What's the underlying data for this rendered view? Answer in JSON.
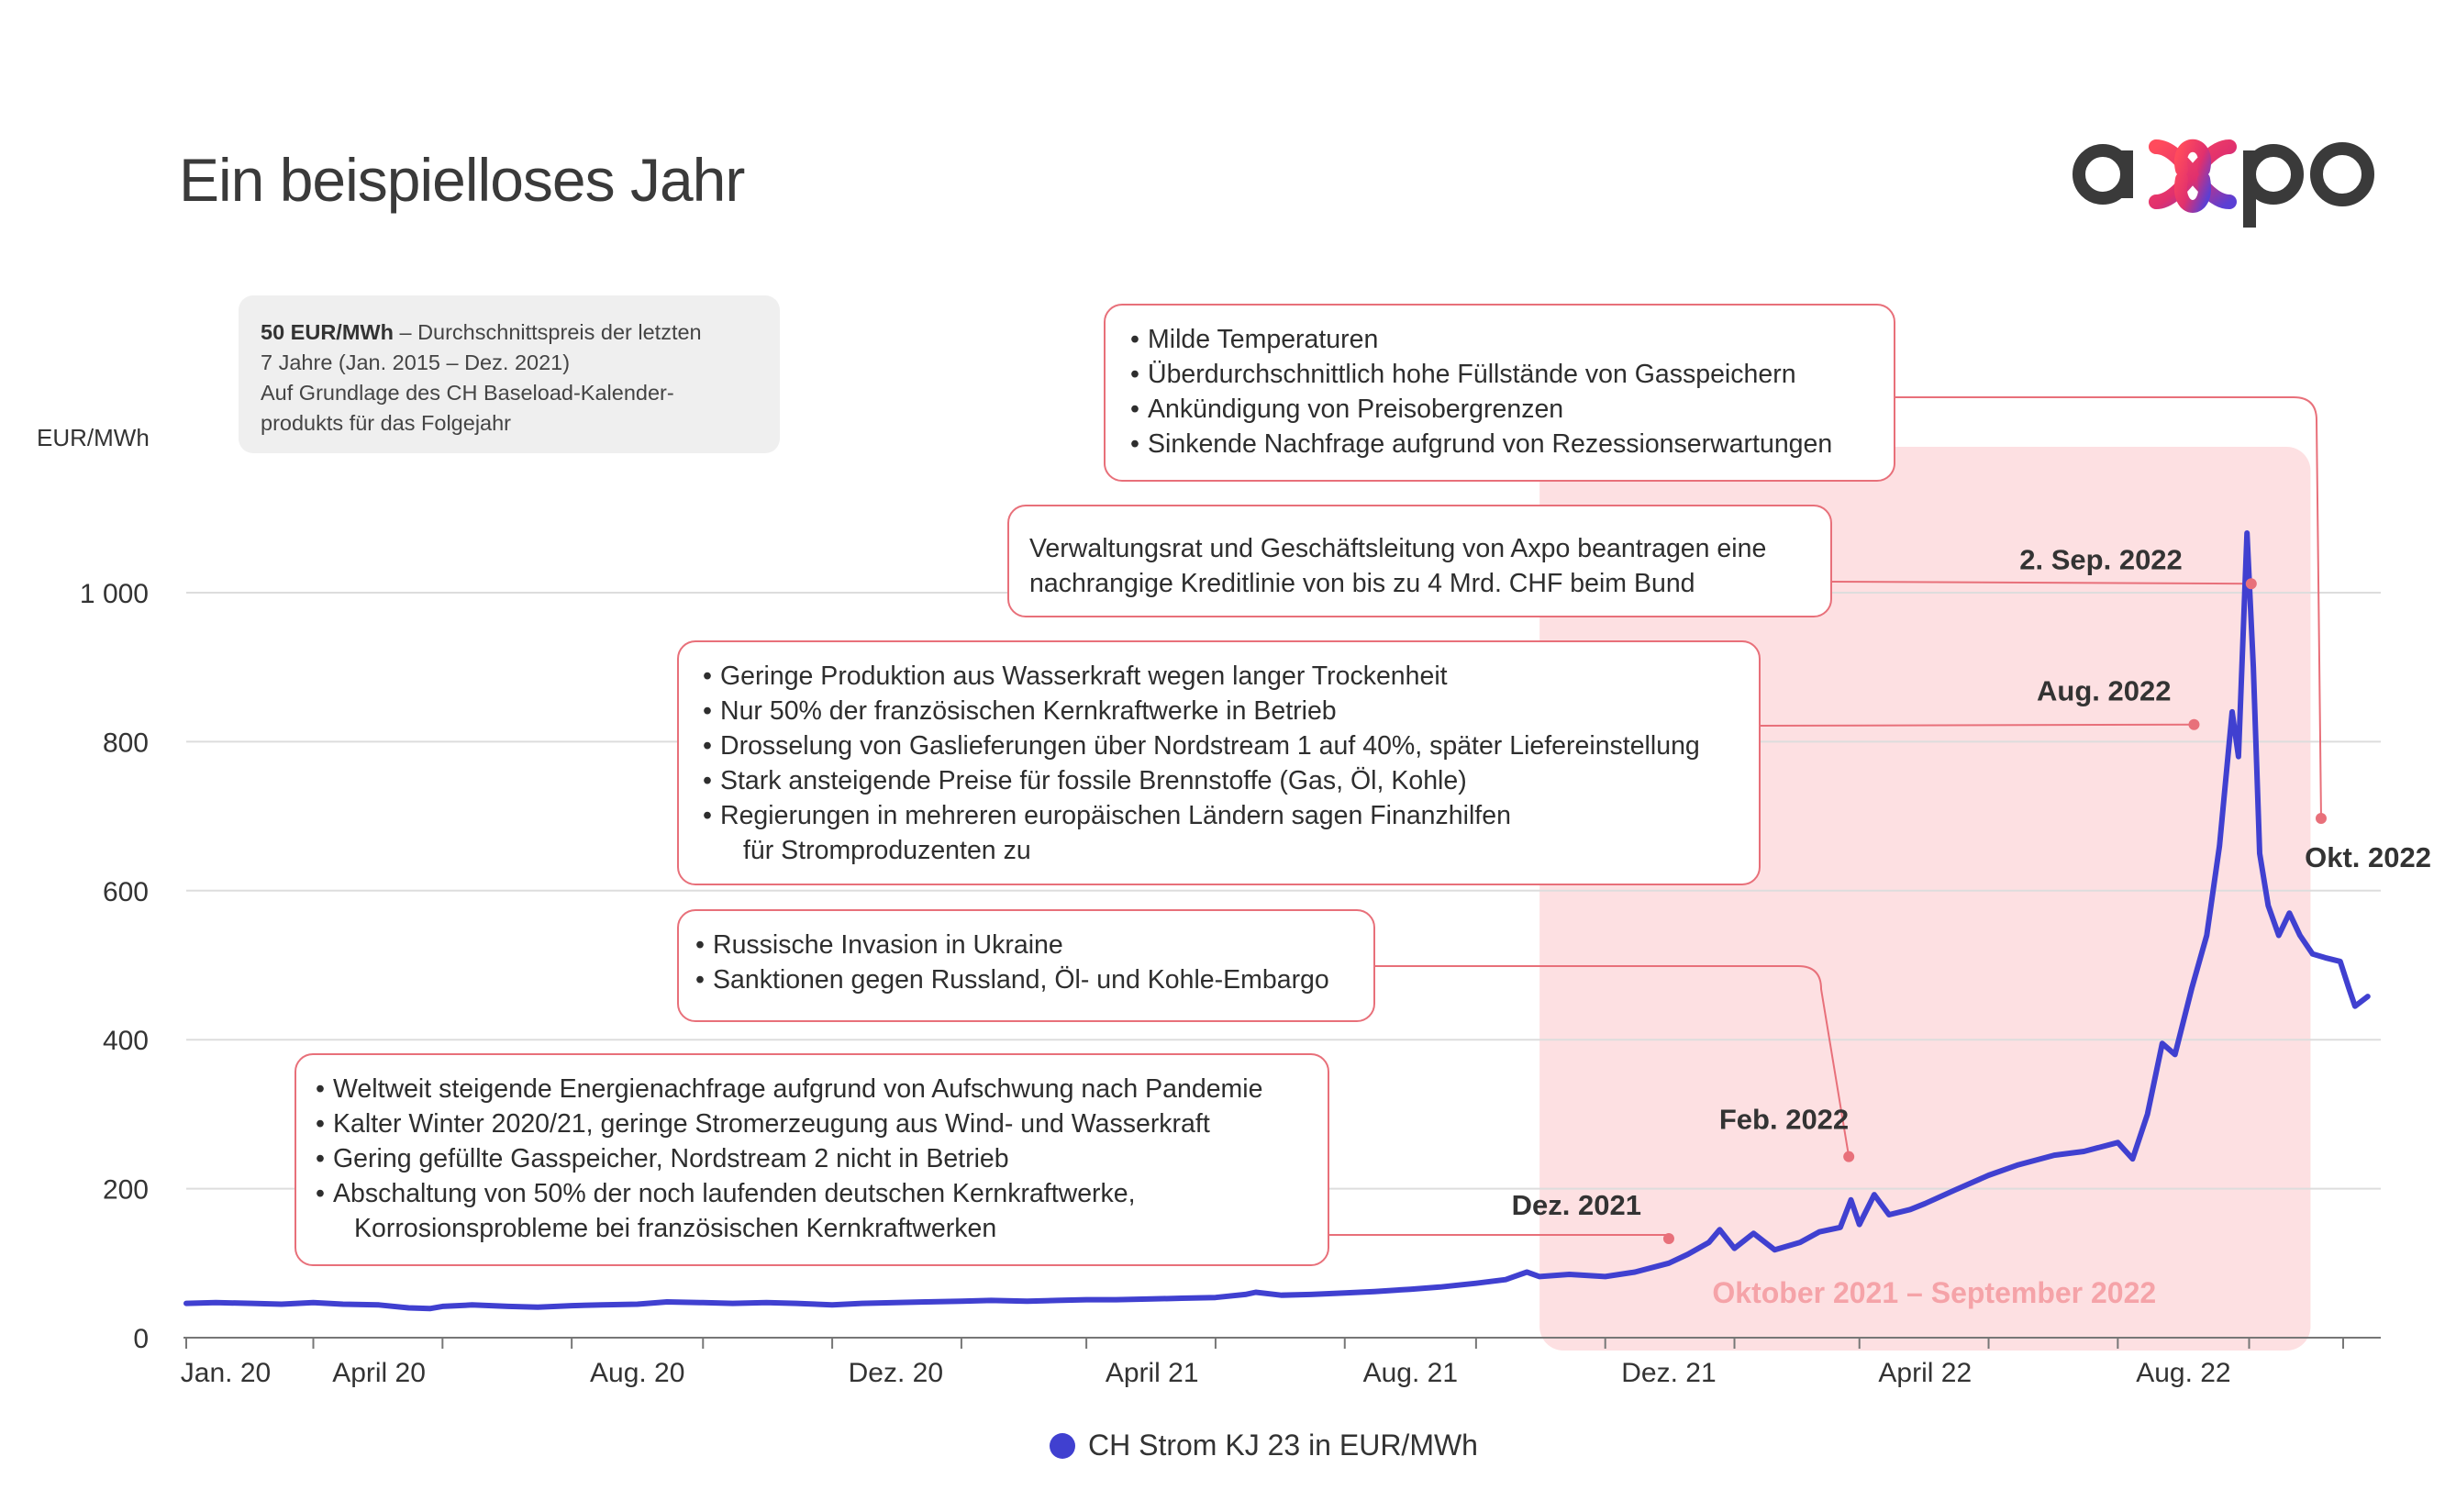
{
  "title": "Ein beispielloses Jahr",
  "logo": {
    "text": "axpo"
  },
  "info_box": {
    "bold": "50 EUR/MWh",
    "rest": " – Durchschnittspreis der letzten",
    "line2": "7 Jahre (Jan. 2015 – Dez. 2021)",
    "line3": "Auf Grundlage des CH Baseload-Kalender-",
    "line4": "produkts für das Folgejahr"
  },
  "callouts": {
    "c1": [
      "Weltweit steigende Energienachfrage aufgrund von Aufschwung nach Pandemie",
      "Kalter Winter 2020/21, geringe Stromerzeugung aus Wind- und Wasserkraft",
      "Gering gefüllte Gasspeicher, Nordstream 2 nicht in Betrieb",
      "Abschaltung von 50% der noch laufenden deutschen Kernkraftwerke,",
      "Korrosionsprobleme bei französischen Kernkraftwerken"
    ],
    "c2": [
      "Russische Invasion in Ukraine",
      "Sanktionen gegen Russland, Öl- und Kohle-Embargo"
    ],
    "c3": [
      "Geringe Produktion aus Wasserkraft wegen langer Trockenheit",
      "Nur 50% der französischen Kernkraftwerke in Betrieb",
      "Drosselung von Gaslieferungen über Nordstream 1 auf 40%, später Liefereinstellung",
      "Stark ansteigende Preise für fossile Brennstoffe (Gas, Öl, Kohle)",
      "Regierungen in mehreren europäischen Ländern sagen Finanzhilfen",
      "für Stromproduzenten zu"
    ],
    "c4": [
      "Verwaltungsrat und Geschäftsleitung von Axpo beantragen eine",
      "nachrangige Kreditlinie von bis zu 4 Mrd. CHF beim Bund"
    ],
    "c5": [
      "Milde Temperaturen",
      "Überdurchschnittlich hohe Füllstände von Gasspeichern",
      "Ankündigung von Preisobergrenzen",
      "Sinkende Nachfrage aufgrund von Rezessionserwartungen"
    ]
  },
  "legend": {
    "label": "CH Strom KJ 23 in EUR/MWh",
    "color": "#4040d0"
  },
  "colors": {
    "series": "#4040d0",
    "highlight": "#fde0e2",
    "callout_border": "#e8707a",
    "highlight_text": "#f5a3a8"
  },
  "chart_data": {
    "type": "line",
    "title": "Ein beispielloses Jahr",
    "ylabel": "EUR/MWh",
    "xlabel": "",
    "ylim": [
      0,
      1000
    ],
    "yticks": [
      0,
      200,
      400,
      600,
      800,
      1000
    ],
    "yticks_labels": [
      "0",
      "200",
      "400",
      "600",
      "800",
      "1 000"
    ],
    "xlim": [
      "2020-01-01",
      "2022-10-31"
    ],
    "xticks": [
      {
        "date": "2020-01-01",
        "label": "Jan. 20"
      },
      {
        "date": "2020-04-01",
        "label": "April 20"
      },
      {
        "date": "2020-08-01",
        "label": "Aug. 20"
      },
      {
        "date": "2020-12-01",
        "label": "Dez. 20"
      },
      {
        "date": "2021-04-01",
        "label": "April 21"
      },
      {
        "date": "2021-08-01",
        "label": "Aug. 21"
      },
      {
        "date": "2021-12-01",
        "label": "Dez. 21"
      },
      {
        "date": "2022-04-01",
        "label": "April 22"
      },
      {
        "date": "2022-08-01",
        "label": "Aug. 22"
      }
    ],
    "grid": true,
    "legend_position": "bottom",
    "highlight": {
      "from": "2021-10-01",
      "to": "2022-09-30",
      "label": "Oktober 2021 – September 2022"
    },
    "annotations": [
      {
        "date": "2021-12-01",
        "value": 133,
        "label": "Dez. 2021"
      },
      {
        "date": "2022-02-24",
        "value": 243,
        "label": "Feb. 2022"
      },
      {
        "date": "2022-08-06",
        "value": 823,
        "label": "Aug. 2022"
      },
      {
        "date": "2022-09-02",
        "value": 1012,
        "label": "2. Sep. 2022"
      },
      {
        "date": "2022-10-05",
        "value": 697,
        "label": "Okt. 2022"
      }
    ],
    "series": [
      {
        "name": "CH Strom KJ 23 in EUR/MWh",
        "points": [
          [
            "2020-01-01",
            46
          ],
          [
            "2020-01-15",
            47
          ],
          [
            "2020-02-01",
            46
          ],
          [
            "2020-02-15",
            45
          ],
          [
            "2020-03-01",
            47
          ],
          [
            "2020-03-15",
            45
          ],
          [
            "2020-04-01",
            44
          ],
          [
            "2020-04-15",
            40
          ],
          [
            "2020-04-25",
            39
          ],
          [
            "2020-05-01",
            42
          ],
          [
            "2020-05-15",
            44
          ],
          [
            "2020-06-01",
            42
          ],
          [
            "2020-06-15",
            41
          ],
          [
            "2020-07-01",
            43
          ],
          [
            "2020-07-15",
            44
          ],
          [
            "2020-08-01",
            45
          ],
          [
            "2020-08-15",
            48
          ],
          [
            "2020-09-01",
            47
          ],
          [
            "2020-09-15",
            46
          ],
          [
            "2020-10-01",
            47
          ],
          [
            "2020-10-15",
            46
          ],
          [
            "2020-11-01",
            44
          ],
          [
            "2020-11-15",
            46
          ],
          [
            "2020-12-01",
            47
          ],
          [
            "2020-12-15",
            48
          ],
          [
            "2021-01-01",
            49
          ],
          [
            "2021-01-15",
            50
          ],
          [
            "2021-02-01",
            49
          ],
          [
            "2021-02-15",
            50
          ],
          [
            "2021-03-01",
            51
          ],
          [
            "2021-03-15",
            51
          ],
          [
            "2021-04-01",
            52
          ],
          [
            "2021-04-15",
            53
          ],
          [
            "2021-05-01",
            54
          ],
          [
            "2021-05-15",
            58
          ],
          [
            "2021-05-20",
            61
          ],
          [
            "2021-06-01",
            57
          ],
          [
            "2021-06-15",
            58
          ],
          [
            "2021-07-01",
            60
          ],
          [
            "2021-07-15",
            62
          ],
          [
            "2021-08-01",
            65
          ],
          [
            "2021-08-15",
            68
          ],
          [
            "2021-09-01",
            73
          ],
          [
            "2021-09-15",
            78
          ],
          [
            "2021-09-25",
            88
          ],
          [
            "2021-10-01",
            82
          ],
          [
            "2021-10-15",
            85
          ],
          [
            "2021-11-01",
            82
          ],
          [
            "2021-11-15",
            88
          ],
          [
            "2021-12-01",
            100
          ],
          [
            "2021-12-10",
            112
          ],
          [
            "2021-12-20",
            128
          ],
          [
            "2021-12-25",
            145
          ],
          [
            "2022-01-01",
            120
          ],
          [
            "2022-01-10",
            140
          ],
          [
            "2022-01-20",
            118
          ],
          [
            "2022-02-01",
            128
          ],
          [
            "2022-02-10",
            142
          ],
          [
            "2022-02-20",
            148
          ],
          [
            "2022-02-25",
            185
          ],
          [
            "2022-03-01",
            152
          ],
          [
            "2022-03-08",
            192
          ],
          [
            "2022-03-15",
            165
          ],
          [
            "2022-03-25",
            172
          ],
          [
            "2022-04-01",
            180
          ],
          [
            "2022-04-15",
            198
          ],
          [
            "2022-05-01",
            218
          ],
          [
            "2022-05-15",
            232
          ],
          [
            "2022-06-01",
            245
          ],
          [
            "2022-06-15",
            250
          ],
          [
            "2022-07-01",
            262
          ],
          [
            "2022-07-08",
            240
          ],
          [
            "2022-07-15",
            300
          ],
          [
            "2022-07-22",
            395
          ],
          [
            "2022-07-28",
            380
          ],
          [
            "2022-08-05",
            470
          ],
          [
            "2022-08-12",
            540
          ],
          [
            "2022-08-18",
            660
          ],
          [
            "2022-08-24",
            840
          ],
          [
            "2022-08-27",
            780
          ],
          [
            "2022-08-31",
            1080
          ],
          [
            "2022-09-03",
            900
          ],
          [
            "2022-09-06",
            650
          ],
          [
            "2022-09-10",
            580
          ],
          [
            "2022-09-15",
            540
          ],
          [
            "2022-09-20",
            570
          ],
          [
            "2022-09-25",
            540
          ],
          [
            "2022-10-01",
            515
          ],
          [
            "2022-10-07",
            510
          ],
          [
            "2022-10-14",
            505
          ],
          [
            "2022-10-18",
            470
          ],
          [
            "2022-10-21",
            445
          ],
          [
            "2022-10-27",
            458
          ]
        ]
      }
    ]
  }
}
